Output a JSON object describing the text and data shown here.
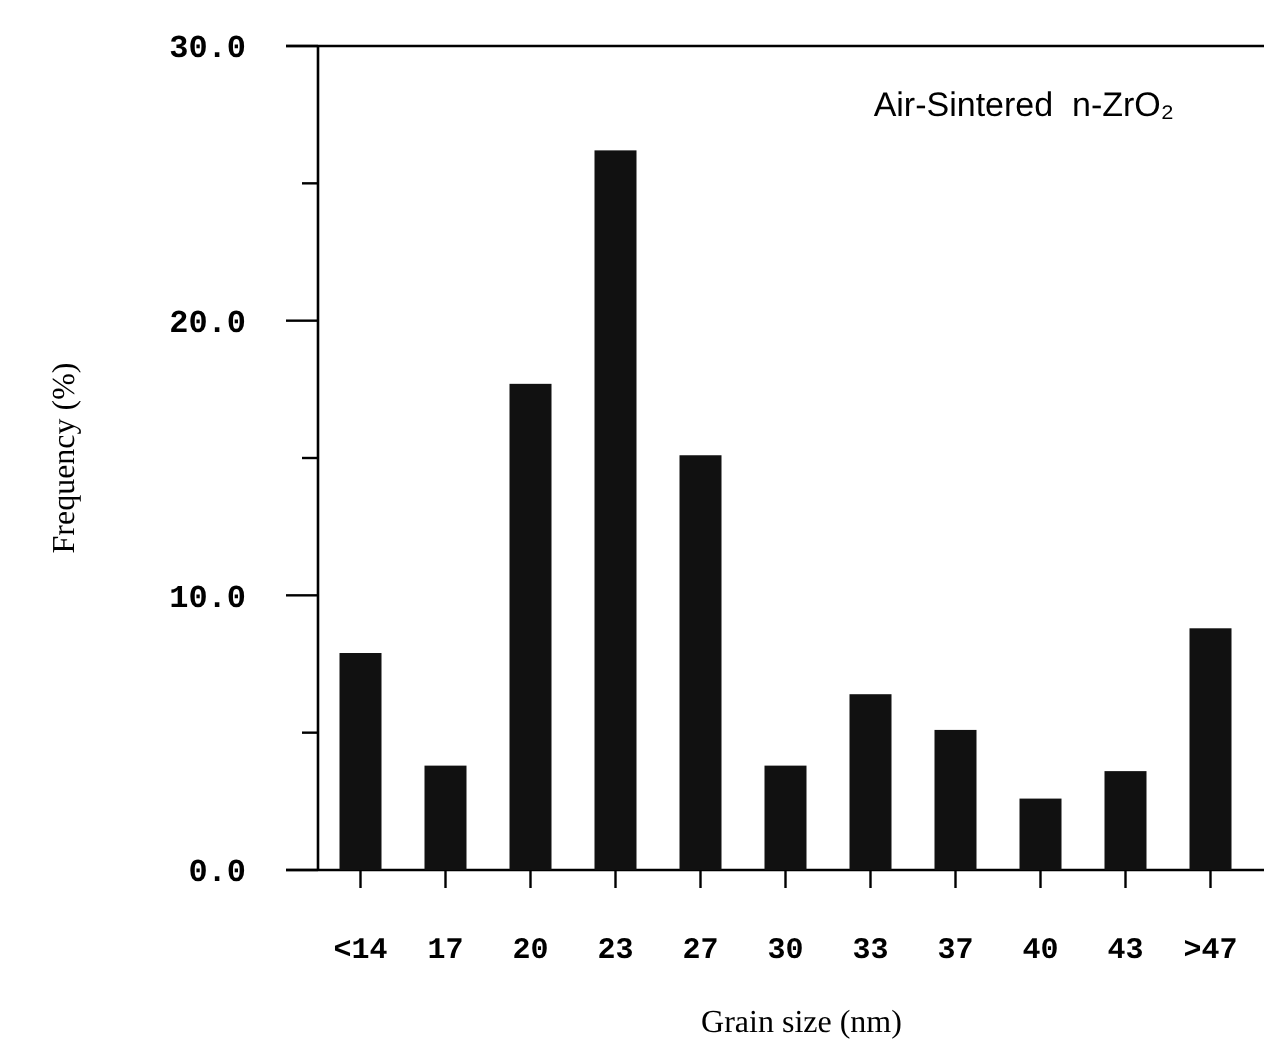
{
  "chart_data": {
    "type": "bar",
    "title": "Air-Sintered  n-ZrO₂",
    "xlabel": "Grain size (nm)",
    "ylabel": "Frequency (%)",
    "categories": [
      "<14",
      "17",
      "20",
      "23",
      "27",
      "30",
      "33",
      "37",
      "40",
      "43",
      ">47"
    ],
    "values": [
      7.9,
      3.8,
      17.7,
      26.2,
      15.1,
      3.8,
      6.4,
      5.1,
      2.6,
      3.6,
      8.8
    ],
    "color": "#111111",
    "ylim": [
      0,
      30
    ],
    "yticks": [
      {
        "value": 0,
        "label": "0.0"
      },
      {
        "value": 5,
        "label": null
      },
      {
        "value": 10,
        "label": "10.0"
      },
      {
        "value": 15,
        "label": null
      },
      {
        "value": 20,
        "label": "20.0"
      },
      {
        "value": 25,
        "label": null
      },
      {
        "value": 30,
        "label": "30.0"
      }
    ],
    "grid": false
  }
}
